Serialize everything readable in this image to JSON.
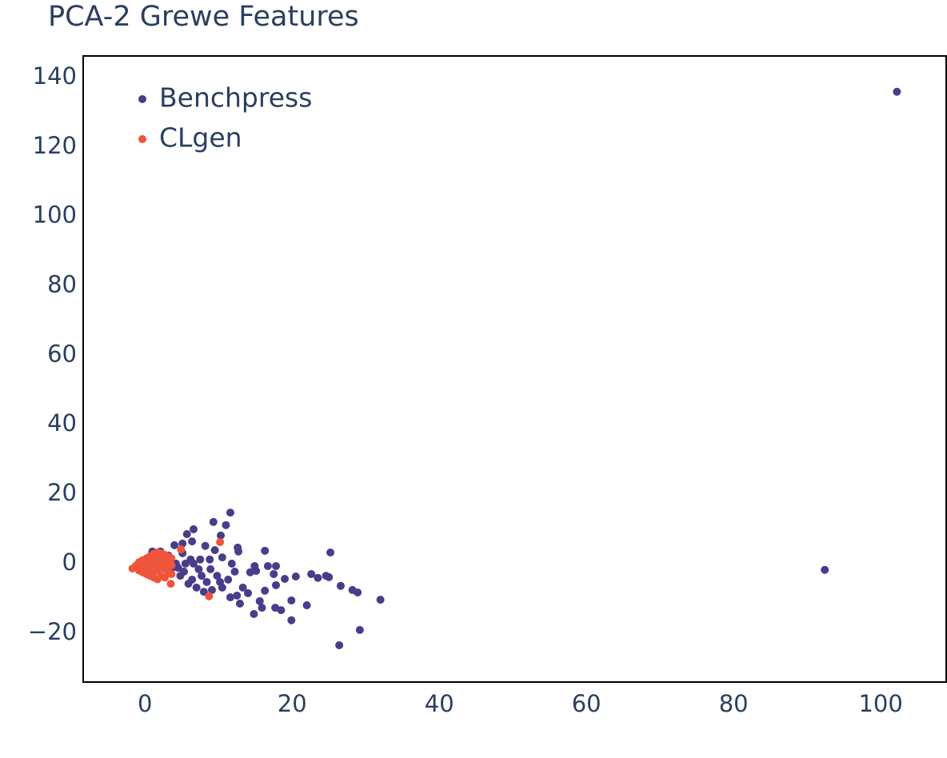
{
  "chart_data": {
    "type": "scatter",
    "title": "PCA-2 Grewe Features",
    "xlim": [
      -8.4,
      108.9
    ],
    "ylim": [
      -34.1,
      146.2
    ],
    "xticks": [
      0,
      20,
      40,
      60,
      80,
      100
    ],
    "yticks": [
      {
        "value": -20,
        "label": "−20"
      },
      0,
      20,
      40,
      60,
      80,
      100,
      120,
      140
    ],
    "grid": false,
    "legend": "top-left",
    "series": [
      {
        "name": "Benchpress",
        "color": "#483d8b",
        "x": [
          102.2,
          92.4,
          26.4,
          29.2,
          32.0,
          25.2,
          11.6,
          9.3,
          11.0,
          6.6,
          5.7,
          10.3,
          16.3,
          12.6,
          12.7,
          19.9,
          19.9,
          22.0,
          26.6,
          28.2,
          28.9,
          22.6,
          23.5,
          24.6,
          25.0,
          20.5,
          19.0,
          17.8,
          17.5,
          16.7,
          17.8,
          14.9,
          14.3,
          15.1,
          17.7,
          18.5,
          16.3,
          14.8,
          12.9,
          11.6,
          12.5,
          14.0,
          15.6,
          15.9,
          13.3,
          10.5,
          9.8,
          11.8,
          12.2,
          8.9,
          7.7,
          6.4,
          5.3,
          4.2,
          3.2,
          2.1,
          1.0,
          2.6,
          3.7,
          4.8,
          5.9,
          7.0,
          8.0,
          9.1,
          10.2,
          8.4,
          7.3,
          6.2,
          5.1,
          4.0,
          8.2,
          9.5,
          10.5,
          11.3,
          6.4,
          5.1,
          4.5,
          5.5,
          6.6,
          7.5,
          8.8
        ],
        "values": [
          135.9,
          -1.8,
          -23.5,
          -19.1,
          -10.4,
          3.2,
          14.7,
          12.0,
          11.1,
          9.9,
          8.5,
          8.1,
          3.7,
          4.6,
          3.5,
          -10.6,
          -16.3,
          -12.0,
          -6.4,
          -7.6,
          -8.3,
          -3.0,
          -4.1,
          -3.5,
          -3.9,
          -3.7,
          -4.4,
          -6.2,
          -3.0,
          -0.7,
          -0.7,
          -0.7,
          -2.5,
          -2.1,
          -12.7,
          -13.4,
          -7.8,
          -14.5,
          -11.5,
          -9.7,
          -9.2,
          -8.5,
          -10.8,
          -12.7,
          -6.9,
          -6.9,
          -3.5,
          0,
          -2.3,
          -1.6,
          -3.5,
          -4.6,
          -2.3,
          0,
          2.3,
          3.5,
          3.5,
          1.2,
          -1.2,
          -3.5,
          -5.8,
          -6.9,
          -8.1,
          -7.6,
          -5.3,
          -5.3,
          -1.6,
          1.2,
          3.0,
          5.3,
          5.1,
          3.9,
          1.8,
          -4.6,
          6.4,
          5.8,
          -1.2,
          0,
          0,
          1.2,
          1.2
        ]
      },
      {
        "name": "CLgen",
        "color": "#ef553b",
        "x": [
          10.2,
          8.7,
          4.9,
          3.5,
          -1.7,
          -1.2,
          -0.8,
          -0.8,
          -0.3,
          -0.3,
          -0.3,
          0.2,
          0.2,
          0.2,
          0.2,
          0.7,
          0.7,
          0.7,
          0.7,
          0.7,
          1.2,
          1.2,
          1.2,
          1.2,
          1.2,
          1.7,
          1.7,
          1.7,
          1.7,
          1.7,
          2.2,
          2.2,
          2.2,
          2.2,
          2.7,
          2.7,
          2.7,
          2.7,
          3.2,
          3.2,
          3.2,
          3.6,
          3.6,
          3.6
        ],
        "values": [
          6.2,
          -9.4,
          4.1,
          -5.8,
          -1.4,
          -0.5,
          0.4,
          -2.0,
          1.0,
          -0.5,
          -2.5,
          1.5,
          0.0,
          -1.5,
          -3.0,
          2.2,
          0.8,
          -0.8,
          -2.3,
          -3.5,
          2.8,
          1.2,
          -0.6,
          -2.2,
          -4.0,
          3.2,
          1.5,
          -0.3,
          -2.0,
          -4.5,
          3.0,
          1.0,
          -1.0,
          -3.5,
          2.5,
          0.5,
          -1.5,
          -4.0,
          2.0,
          0.0,
          -2.5,
          1.5,
          -0.5,
          -3.0
        ]
      }
    ]
  }
}
